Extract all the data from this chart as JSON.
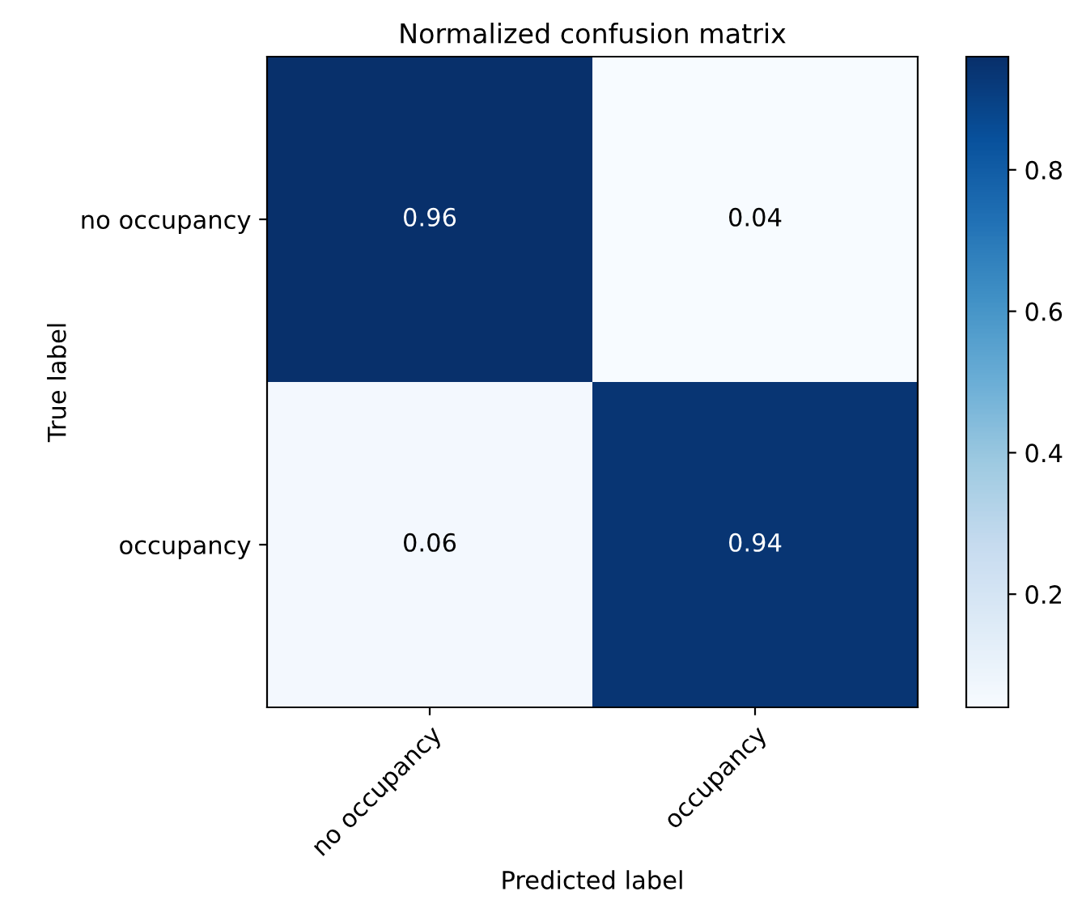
{
  "chart_data": {
    "type": "heatmap",
    "title": "Normalized confusion matrix",
    "xlabel": "Predicted label",
    "ylabel": "True label",
    "categories": [
      "no occupancy",
      "occupancy"
    ],
    "y_categories": [
      "no occupancy",
      "occupancy"
    ],
    "cells": [
      [
        0.96,
        0.04
      ],
      [
        0.06,
        0.94
      ]
    ],
    "data_labels": true,
    "clim": [
      0.04,
      0.96
    ],
    "cticks": [
      0.2,
      0.4,
      0.6,
      0.8
    ]
  }
}
